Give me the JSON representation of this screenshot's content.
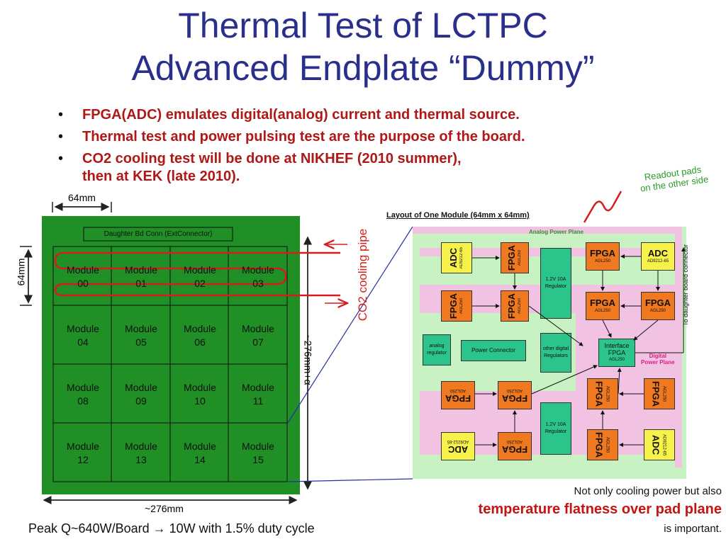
{
  "title": {
    "line1": "Thermal Test of LCTPC",
    "line2": "Advanced Endplate “Dummy”"
  },
  "bullets": [
    {
      "text": "FPGA(ADC) emulates digital(analog) current and thermal source."
    },
    {
      "text": "Thermal test and power pulsing test are the purpose of the board."
    },
    {
      "text": "CO2 cooling test will be done at NIKHEF (2010 summer),",
      "text2": "then at KEK (late 2010)."
    }
  ],
  "bullet_symbol": "•",
  "board": {
    "width_label_top": "64mm",
    "height_label_left": "64mm",
    "width_label_bottom": "~276mm",
    "height_label_right": "~276mm+α",
    "connector_label": "Daughter Bd Conn (ExtConnector)",
    "module_word": "Module",
    "modules": [
      "00",
      "04",
      "08",
      "12",
      "01",
      "05",
      "09",
      "13",
      "02",
      "06",
      "10",
      "14",
      "03",
      "07",
      "11",
      "15"
    ],
    "board_color": "#1f8f26",
    "cooling_pipe_color": "#d61c1c"
  },
  "cooling_pipe_label": "CO2 cooling pipe",
  "readout_note": {
    "line1": "Readout pads",
    "line2": "on the other side",
    "color": "#2a9a2a"
  },
  "module_layout": {
    "title": "Layout of One Module (64mm x 64mm)",
    "analog_plane": "Analog Power Plane",
    "digital_plane_line1": "Digital",
    "digital_plane_line2": "Power Plane",
    "side_label": "To daughter board connector",
    "adc_label": "ADC",
    "adc_part_a": "AD9212-65",
    "adc_part_b": "AD9212-65",
    "fpga_label": "FPGA",
    "fpga_part": "AGL250",
    "regulator_label": "1.2V 10A Regulator",
    "analog_regulator": "analog regulator",
    "power_connector": "Power Connector",
    "other_regulators": "other digital Regulators",
    "interface_fpga_line1": "Interface",
    "interface_fpga_line2": "FPGA",
    "interface_fpga_part": "AGL250"
  },
  "footer": {
    "peak_text": "Peak Q~640W/Board → 10W with 1.5% duty cycle",
    "note_line1": "Not only cooling power but also",
    "note_emphasis": "temperature flatness over pad plane",
    "note_line3": "is important."
  }
}
